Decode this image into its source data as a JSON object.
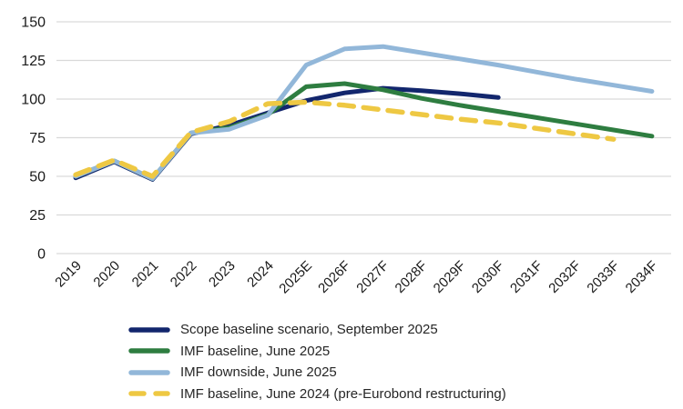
{
  "chart_data": {
    "type": "line",
    "title": "",
    "xlabel": "",
    "ylabel": "",
    "ylim": [
      0,
      150
    ],
    "yticks": [
      0,
      25,
      50,
      75,
      100,
      125,
      150
    ],
    "grid": true,
    "legend_position": "bottom-left",
    "categories": [
      "2019",
      "2020",
      "2021",
      "2022",
      "2023",
      "2024",
      "2025E",
      "2026F",
      "2027F",
      "2028F",
      "2029F",
      "2030F",
      "2031F",
      "2032F",
      "2033F",
      "2034F"
    ],
    "series": [
      {
        "name": "Scope baseline scenario, September 2025",
        "color": "#12266d",
        "style": "solid",
        "values": [
          49,
          59.5,
          48,
          77.5,
          83,
          91,
          99,
          104,
          107,
          105.5,
          103.5,
          101,
          null,
          null,
          null,
          null
        ]
      },
      {
        "name": "IMF baseline, June 2025",
        "color": "#2e7d40",
        "style": "solid",
        "values": [
          50,
          60,
          48.5,
          78,
          81.5,
          90,
          108,
          110,
          106,
          100.5,
          96,
          92,
          88,
          84,
          80,
          76
        ]
      },
      {
        "name": "IMF downside, June 2025",
        "color": "#92b7d9",
        "style": "solid",
        "values": [
          50,
          60,
          48.5,
          78,
          80.5,
          89.5,
          122,
          132.5,
          134,
          130,
          126,
          122,
          117.5,
          113,
          109,
          105
        ]
      },
      {
        "name": "IMF baseline, June 2024 (pre-Eurobond restructuring)",
        "color": "#eec843",
        "style": "dashed",
        "values": [
          51,
          60.5,
          50,
          78.5,
          85.5,
          97,
          98,
          96,
          93,
          90,
          87,
          84.5,
          81,
          77.5,
          74,
          null
        ]
      }
    ]
  },
  "colors": {
    "background": "#ffffff",
    "gridline": "#d9d9d9",
    "tick_text": "#1a1a1a",
    "legend_text": "#262626"
  }
}
